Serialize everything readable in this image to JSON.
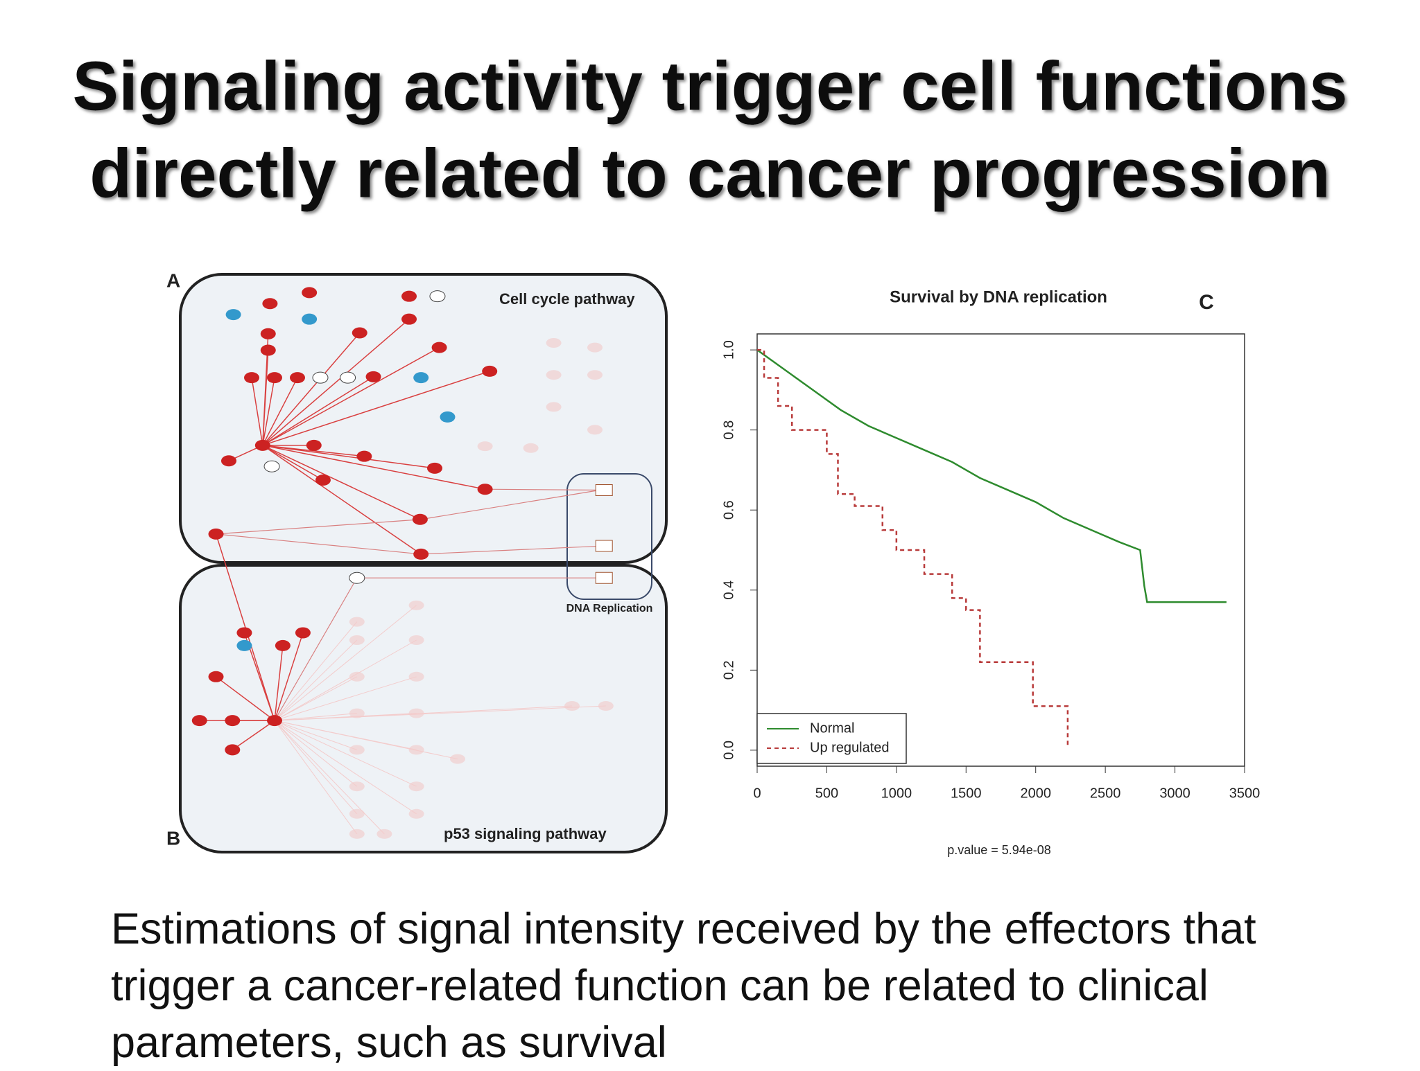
{
  "title_lines": [
    "Signaling activity trigger cell functions",
    "directly related to cancer progression"
  ],
  "figure": {
    "label_a": "A",
    "label_b": "B",
    "label_c": "C",
    "cell_cycle": "Cell cycle pathway",
    "dna_replication": "DNA Replication",
    "p53": "p53 signaling pathway"
  },
  "chart_data": {
    "type": "line",
    "title": "Survival by DNA replication",
    "annotation": "p.value = 5.94e-08",
    "xlim": [
      0,
      3500
    ],
    "xticks": [
      0,
      500,
      1000,
      1500,
      2000,
      2500,
      3000,
      3500
    ],
    "ylim": [
      -0.04,
      1.04
    ],
    "yticks": [
      {
        "value": 0,
        "label": "0.0"
      },
      0.2,
      0.4,
      0.6,
      0.8,
      {
        "value": 1,
        "label": "1.0"
      }
    ],
    "legend": "bottom-left",
    "series": [
      {
        "name": "Normal",
        "color": "#2e8b2e",
        "line_style": "solid",
        "x": [
          0,
          200,
          400,
          600,
          800,
          1000,
          1200,
          1400,
          1600,
          1800,
          2000,
          2200,
          2400,
          2600,
          2750,
          2780,
          2800,
          3370
        ],
        "values": [
          1.0,
          0.95,
          0.9,
          0.85,
          0.81,
          0.78,
          0.75,
          0.72,
          0.68,
          0.65,
          0.62,
          0.58,
          0.55,
          0.52,
          0.5,
          0.41,
          0.37,
          0.37
        ]
      },
      {
        "name": "Up regulated",
        "color": "#b83a3a",
        "line_style": "dashed",
        "x": [
          0,
          50,
          50,
          150,
          150,
          250,
          250,
          500,
          500,
          580,
          580,
          700,
          700,
          900,
          900,
          1000,
          1000,
          1200,
          1200,
          1400,
          1400,
          1500,
          1500,
          1600,
          1600,
          1980,
          1980,
          2230,
          2230
        ],
        "values": [
          1.0,
          1.0,
          0.93,
          0.93,
          0.86,
          0.86,
          0.8,
          0.8,
          0.74,
          0.74,
          0.64,
          0.64,
          0.61,
          0.61,
          0.55,
          0.55,
          0.5,
          0.5,
          0.44,
          0.44,
          0.38,
          0.38,
          0.35,
          0.35,
          0.22,
          0.22,
          0.11,
          0.11,
          0.01
        ]
      }
    ]
  },
  "body": "Estimations of signal intensity received by the effectors that trigger a cancer-related function can be related to clinical parameters, such as survival"
}
